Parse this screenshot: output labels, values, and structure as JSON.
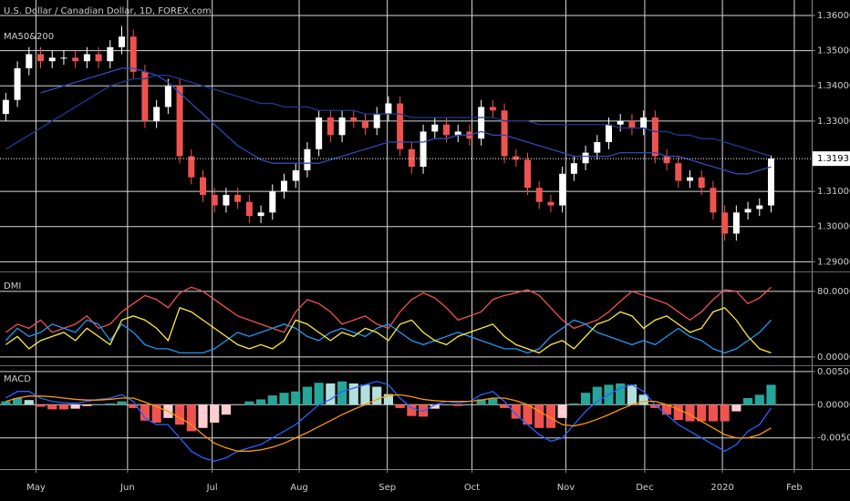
{
  "chart_data": [
    {
      "type": "candlestick",
      "title": "U.S. Dollar / Canadian Dollar, 1D, FOREX.com",
      "subtitle": "MA50&200",
      "x": [
        0,
        1,
        2,
        3,
        4,
        5,
        6,
        7,
        8,
        9,
        10,
        11,
        12,
        13,
        14,
        15,
        16,
        17,
        18,
        19,
        20,
        21,
        22,
        23,
        24,
        25,
        26,
        27,
        28,
        29,
        30,
        31,
        32,
        33,
        34,
        35,
        36,
        37,
        38,
        39,
        40,
        41,
        42,
        43,
        44,
        45,
        46,
        47,
        48,
        49,
        50,
        51,
        52,
        53,
        54,
        55,
        56,
        57,
        58,
        59,
        60,
        61,
        62,
        63,
        64,
        65,
        66
      ],
      "open": [
        1.332,
        1.336,
        1.345,
        1.349,
        1.347,
        1.348,
        1.348,
        1.347,
        1.349,
        1.347,
        1.351,
        1.354,
        1.344,
        1.33,
        1.334,
        1.34,
        1.32,
        1.314,
        1.309,
        1.306,
        1.309,
        1.307,
        1.303,
        1.304,
        1.31,
        1.313,
        1.316,
        1.322,
        1.331,
        1.326,
        1.331,
        1.33,
        1.328,
        1.332,
        1.335,
        1.322,
        1.317,
        1.327,
        1.329,
        1.326,
        1.327,
        1.325,
        1.334,
        1.333,
        1.32,
        1.319,
        1.311,
        1.307,
        1.306,
        1.315,
        1.318,
        1.321,
        1.324,
        1.329,
        1.33,
        1.328,
        1.331,
        1.32,
        1.318,
        1.313,
        1.314,
        1.311,
        1.304,
        1.298,
        1.304,
        1.305,
        1.306
      ],
      "high": [
        1.338,
        1.347,
        1.351,
        1.351,
        1.35,
        1.35,
        1.35,
        1.351,
        1.351,
        1.353,
        1.357,
        1.356,
        1.346,
        1.336,
        1.342,
        1.342,
        1.322,
        1.316,
        1.311,
        1.311,
        1.311,
        1.309,
        1.306,
        1.312,
        1.315,
        1.318,
        1.324,
        1.333,
        1.333,
        1.333,
        1.333,
        1.332,
        1.334,
        1.337,
        1.337,
        1.324,
        1.329,
        1.331,
        1.331,
        1.329,
        1.329,
        1.336,
        1.336,
        1.335,
        1.322,
        1.321,
        1.313,
        1.309,
        1.317,
        1.32,
        1.323,
        1.326,
        1.331,
        1.332,
        1.332,
        1.333,
        1.333,
        1.322,
        1.32,
        1.316,
        1.316,
        1.313,
        1.306,
        1.306,
        1.307,
        1.308,
        1.3203
      ],
      "low": [
        1.33,
        1.334,
        1.343,
        1.345,
        1.345,
        1.346,
        1.345,
        1.345,
        1.345,
        1.345,
        1.349,
        1.342,
        1.328,
        1.328,
        1.332,
        1.318,
        1.312,
        1.307,
        1.304,
        1.304,
        1.305,
        1.301,
        1.301,
        1.302,
        1.308,
        1.311,
        1.314,
        1.32,
        1.324,
        1.324,
        1.328,
        1.326,
        1.326,
        1.33,
        1.32,
        1.315,
        1.315,
        1.325,
        1.324,
        1.324,
        1.323,
        1.323,
        1.331,
        1.318,
        1.317,
        1.309,
        1.305,
        1.304,
        1.304,
        1.313,
        1.316,
        1.319,
        1.322,
        1.327,
        1.326,
        1.326,
        1.318,
        1.316,
        1.311,
        1.311,
        1.309,
        1.302,
        1.296,
        1.296,
        1.302,
        1.303,
        1.304
      ],
      "close": [
        1.336,
        1.345,
        1.349,
        1.347,
        1.348,
        1.348,
        1.347,
        1.349,
        1.347,
        1.351,
        1.354,
        1.344,
        1.33,
        1.334,
        1.34,
        1.32,
        1.314,
        1.309,
        1.306,
        1.309,
        1.307,
        1.303,
        1.304,
        1.31,
        1.313,
        1.316,
        1.322,
        1.331,
        1.326,
        1.331,
        1.33,
        1.328,
        1.332,
        1.335,
        1.322,
        1.317,
        1.327,
        1.329,
        1.326,
        1.327,
        1.325,
        1.334,
        1.333,
        1.32,
        1.319,
        1.311,
        1.307,
        1.306,
        1.315,
        1.318,
        1.321,
        1.324,
        1.329,
        1.33,
        1.328,
        1.331,
        1.32,
        1.318,
        1.313,
        1.314,
        1.311,
        1.304,
        1.298,
        1.304,
        1.305,
        1.306,
        1.31931
      ],
      "last_price_label": "1.31931",
      "up_color": "#ffffff",
      "down_color": "#ef5350",
      "series": [
        {
          "color": "#2f4bb8",
          "values": [
            null,
            null,
            null,
            1.338,
            1.339,
            1.34,
            1.341,
            1.342,
            1.343,
            1.344,
            1.345,
            1.345,
            1.344,
            1.343,
            1.341,
            1.338,
            1.335,
            1.332,
            1.329,
            1.326,
            1.323,
            1.321,
            1.319,
            1.318,
            1.318,
            1.318,
            1.318,
            1.318,
            1.319,
            1.32,
            1.321,
            1.322,
            1.323,
            1.324,
            1.324,
            1.324,
            1.324,
            1.325,
            1.325,
            1.326,
            1.326,
            1.327,
            1.326,
            1.326,
            1.325,
            1.324,
            1.323,
            1.322,
            1.321,
            1.32,
            1.32,
            1.32,
            1.32,
            1.321,
            1.321,
            1.321,
            1.321,
            1.32,
            1.32,
            1.319,
            1.318,
            1.317,
            1.316,
            1.315,
            1.315,
            1.316,
            1.317
          ]
        },
        {
          "color": "#1f3a93",
          "values": [
            1.322,
            1.324,
            1.326,
            1.328,
            1.33,
            1.332,
            1.334,
            1.336,
            1.338,
            1.34,
            1.341,
            1.342,
            1.342,
            1.343,
            1.343,
            1.342,
            1.341,
            1.34,
            1.339,
            1.338,
            1.337,
            1.336,
            1.335,
            1.335,
            1.334,
            1.334,
            1.334,
            1.333,
            1.333,
            1.333,
            1.333,
            1.332,
            1.332,
            1.332,
            1.332,
            1.331,
            1.331,
            1.331,
            1.331,
            1.331,
            1.331,
            1.331,
            1.331,
            1.33,
            1.33,
            1.33,
            1.329,
            1.329,
            1.329,
            1.329,
            1.329,
            1.329,
            1.329,
            1.328,
            1.328,
            1.328,
            1.327,
            1.327,
            1.326,
            1.326,
            1.325,
            1.325,
            1.324,
            1.323,
            1.322,
            1.321,
            1.32
          ]
        }
      ],
      "xlim": [
        -0.5,
        69.5
      ],
      "ylim": [
        1.2875,
        1.3644
      ],
      "yticks": [
        {
          "value": 1.29,
          "label": "1.29000"
        },
        {
          "value": 1.3,
          "label": "1.30000"
        },
        {
          "value": 1.31,
          "label": "1.31000"
        },
        {
          "value": 1.33,
          "label": "1.33000"
        },
        {
          "value": 1.34,
          "label": "1.34000"
        },
        {
          "value": 1.35,
          "label": "1.35000"
        },
        {
          "value": 1.36,
          "label": "1.36000"
        }
      ],
      "grid": true
    },
    {
      "type": "line",
      "title": "DMI",
      "x": [
        0,
        1,
        2,
        3,
        4,
        5,
        6,
        7,
        8,
        9,
        10,
        11,
        12,
        13,
        14,
        15,
        16,
        17,
        18,
        19,
        20,
        21,
        22,
        23,
        24,
        25,
        26,
        27,
        28,
        29,
        30,
        31,
        32,
        33,
        34,
        35,
        36,
        37,
        38,
        39,
        40,
        41,
        42,
        43,
        44,
        45,
        46,
        47,
        48,
        49,
        50,
        51,
        52,
        53,
        54,
        55,
        56,
        57,
        58,
        59,
        60,
        61,
        62,
        63,
        64,
        65,
        66
      ],
      "series": [
        {
          "color": "#ef5350",
          "values": [
            30,
            40,
            35,
            45,
            30,
            35,
            40,
            50,
            35,
            40,
            55,
            65,
            75,
            70,
            60,
            78,
            85,
            80,
            70,
            60,
            50,
            45,
            40,
            35,
            30,
            55,
            70,
            65,
            55,
            40,
            45,
            50,
            40,
            35,
            55,
            70,
            78,
            72,
            60,
            45,
            50,
            55,
            70,
            75,
            78,
            82,
            75,
            60,
            45,
            35,
            40,
            45,
            55,
            68,
            80,
            75,
            70,
            65,
            55,
            45,
            55,
            70,
            82,
            80,
            65,
            72,
            85
          ]
        },
        {
          "color": "#2196f3",
          "values": [
            20,
            35,
            25,
            30,
            40,
            35,
            30,
            45,
            40,
            20,
            40,
            30,
            15,
            10,
            10,
            5,
            5,
            5,
            10,
            20,
            30,
            25,
            30,
            35,
            40,
            35,
            25,
            20,
            30,
            35,
            30,
            25,
            35,
            40,
            30,
            20,
            15,
            20,
            25,
            30,
            25,
            20,
            15,
            10,
            10,
            5,
            10,
            25,
            35,
            45,
            40,
            30,
            25,
            20,
            15,
            20,
            15,
            25,
            35,
            25,
            20,
            10,
            5,
            10,
            20,
            30,
            45
          ]
        },
        {
          "color": "#ffeb3b",
          "values": [
            15,
            25,
            10,
            20,
            25,
            30,
            20,
            35,
            25,
            15,
            45,
            50,
            45,
            35,
            20,
            60,
            55,
            45,
            35,
            25,
            15,
            10,
            15,
            10,
            20,
            45,
            40,
            30,
            20,
            30,
            25,
            35,
            30,
            20,
            40,
            45,
            30,
            20,
            15,
            25,
            30,
            35,
            40,
            25,
            15,
            10,
            5,
            15,
            20,
            10,
            25,
            40,
            45,
            55,
            50,
            35,
            45,
            50,
            40,
            30,
            35,
            55,
            60,
            45,
            25,
            10,
            5
          ]
        }
      ],
      "xlim": [
        -0.5,
        69.5
      ],
      "ylim": [
        -9,
        102
      ],
      "yticks": [
        {
          "value": 0,
          "label": "0.00000"
        },
        {
          "value": 80,
          "label": "80.00000"
        }
      ],
      "grid": true
    },
    {
      "type": "line",
      "title": "MACD",
      "x": [
        0,
        1,
        2,
        3,
        4,
        5,
        6,
        7,
        8,
        9,
        10,
        11,
        12,
        13,
        14,
        15,
        16,
        17,
        18,
        19,
        20,
        21,
        22,
        23,
        24,
        25,
        26,
        27,
        28,
        29,
        30,
        31,
        32,
        33,
        34,
        35,
        36,
        37,
        38,
        39,
        40,
        41,
        42,
        43,
        44,
        45,
        46,
        47,
        48,
        49,
        50,
        51,
        52,
        53,
        54,
        55,
        56,
        57,
        58,
        59,
        60,
        61,
        62,
        63,
        64,
        65,
        66
      ],
      "histogram": {
        "colors": [
          "#26a69a",
          "#b2dfdb",
          "#ef5350",
          "#ffcdd2"
        ],
        "values": [
          0.0005,
          0.001,
          0.0007,
          -0.0003,
          -0.0007,
          -0.0007,
          -0.0006,
          -0.0002,
          0.0001,
          0.0002,
          0.0005,
          -0.0005,
          -0.0024,
          -0.0027,
          -0.002,
          -0.003,
          -0.004,
          -0.0035,
          -0.0027,
          -0.0015,
          0.0,
          0.0005,
          0.0008,
          0.0014,
          0.0018,
          0.002,
          0.0027,
          0.0033,
          0.0032,
          0.0035,
          0.0032,
          0.003,
          0.0027,
          0.0016,
          -0.0005,
          -0.0017,
          -0.0018,
          -0.0006,
          0.0,
          -0.0002,
          0.0,
          0.0008,
          0.001,
          -0.0005,
          -0.0021,
          -0.003,
          -0.0035,
          -0.0035,
          -0.002,
          0.0002,
          0.0018,
          0.0027,
          0.003,
          0.0032,
          0.003,
          0.0015,
          -0.0005,
          -0.0015,
          -0.0023,
          -0.0025,
          -0.0025,
          -0.0025,
          -0.0025,
          -0.001,
          0.001,
          0.0015,
          0.003
        ]
      },
      "series": [
        {
          "color": "#2962ff",
          "values": [
            0.001,
            0.002,
            0.002,
            0.001,
            0.0005,
            0.0003,
            0.0002,
            0.0005,
            0.0008,
            0.001,
            0.0015,
            0.0005,
            -0.002,
            -0.003,
            -0.003,
            -0.005,
            -0.007,
            -0.008,
            -0.0085,
            -0.008,
            -0.007,
            -0.0065,
            -0.006,
            -0.005,
            -0.004,
            -0.003,
            -0.0015,
            0.0,
            0.0008,
            0.002,
            0.0025,
            0.003,
            0.0035,
            0.003,
            0.001,
            -0.0005,
            -0.001,
            0.0,
            0.0005,
            0.0003,
            0.0005,
            0.0015,
            0.002,
            0.0005,
            -0.0015,
            -0.003,
            -0.0045,
            -0.0055,
            -0.005,
            -0.003,
            -0.001,
            0.0005,
            0.0015,
            0.0025,
            0.003,
            0.002,
            0.0,
            -0.0015,
            -0.003,
            -0.004,
            -0.005,
            -0.006,
            -0.007,
            -0.006,
            -0.004,
            -0.003,
            -0.0005
          ]
        },
        {
          "color": "#ff9800",
          "values": [
            0.0005,
            0.001,
            0.0013,
            0.0013,
            0.0012,
            0.001,
            0.0008,
            0.0007,
            0.0007,
            0.0008,
            0.001,
            0.001,
            0.0004,
            -0.0003,
            -0.001,
            -0.002,
            -0.003,
            -0.0045,
            -0.0058,
            -0.0065,
            -0.007,
            -0.007,
            -0.0068,
            -0.0064,
            -0.0058,
            -0.005,
            -0.0042,
            -0.0033,
            -0.0024,
            -0.0015,
            -0.0007,
            0.0,
            0.0008,
            0.0014,
            0.0015,
            0.0012,
            0.0008,
            0.0006,
            0.0005,
            0.0005,
            0.0005,
            0.0007,
            0.001,
            0.001,
            0.0006,
            0.0,
            -0.001,
            -0.002,
            -0.003,
            -0.0032,
            -0.0028,
            -0.0022,
            -0.0015,
            -0.0007,
            0.0,
            0.0005,
            0.0005,
            0.0,
            -0.0007,
            -0.0015,
            -0.0025,
            -0.0035,
            -0.0045,
            -0.005,
            -0.005,
            -0.0045,
            -0.0035
          ]
        }
      ],
      "xlim": [
        -0.5,
        69.5
      ],
      "ylim": [
        -0.0097,
        0.0058
      ],
      "yticks": [
        {
          "value": -0.005,
          "label": "-0.00500"
        },
        {
          "value": 0,
          "label": "0.00000"
        },
        {
          "value": 0.005,
          "label": "0.00500"
        }
      ],
      "xticks": [
        {
          "value": 2.6,
          "label": "May"
        },
        {
          "value": 10.5,
          "label": "Jun"
        },
        {
          "value": 17.8,
          "label": "Jul"
        },
        {
          "value": 25.3,
          "label": "Aug"
        },
        {
          "value": 32.9,
          "label": "Sep"
        },
        {
          "value": 40.2,
          "label": "Oct"
        },
        {
          "value": 48.3,
          "label": "Nov"
        },
        {
          "value": 55.1,
          "label": "Dec"
        },
        {
          "value": 61.8,
          "label": "2020"
        },
        {
          "value": 68.0,
          "label": "Feb"
        }
      ],
      "grid": true
    }
  ]
}
